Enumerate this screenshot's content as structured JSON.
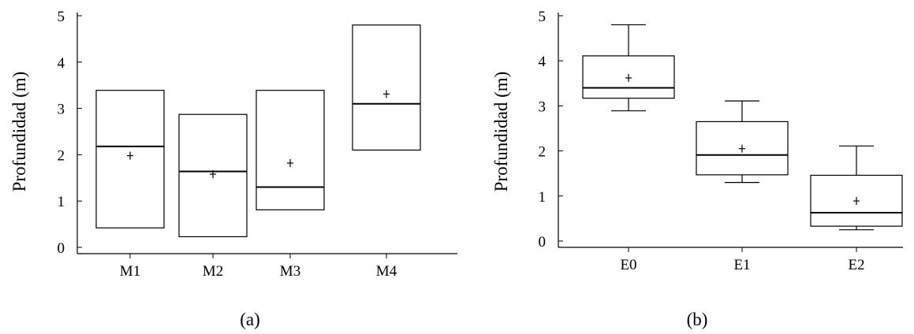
{
  "figure": {
    "panels": [
      {
        "caption": "(a)"
      },
      {
        "caption": "(b)"
      }
    ]
  },
  "chart_data": [
    {
      "type": "box",
      "panel": "(a)",
      "ylabel": "Profundidad (m)",
      "ylim": [
        0,
        5
      ],
      "yticks": [
        0,
        1,
        2,
        3,
        4,
        5
      ],
      "categories": [
        "M1",
        "M2",
        "M3",
        "M4"
      ],
      "boxes": [
        {
          "label": "M1",
          "min": 0.42,
          "q1": 0.42,
          "median": 2.18,
          "q3": 3.39,
          "max": 3.39,
          "mean": 1.98
        },
        {
          "label": "M2",
          "min": 0.23,
          "q1": 0.23,
          "median": 1.64,
          "q3": 2.87,
          "max": 2.87,
          "mean": 1.58
        },
        {
          "label": "M3",
          "min": 0.81,
          "q1": 0.81,
          "median": 1.3,
          "q3": 3.39,
          "max": 3.39,
          "mean": 1.82
        },
        {
          "label": "M4",
          "min": 2.1,
          "q1": 2.1,
          "median": 3.1,
          "q3": 4.8,
          "max": 4.8,
          "mean": 3.31
        }
      ]
    },
    {
      "type": "box",
      "panel": "(b)",
      "ylabel": "Profundidad (m)",
      "ylim": [
        0,
        5
      ],
      "yticks": [
        0,
        1,
        2,
        3,
        4,
        5
      ],
      "categories": [
        "E0",
        "E1",
        "E2"
      ],
      "boxes": [
        {
          "label": "E0",
          "min": 2.89,
          "q1": 3.17,
          "median": 3.4,
          "q3": 4.11,
          "max": 4.8,
          "mean": 3.62
        },
        {
          "label": "E1",
          "min": 1.3,
          "q1": 1.47,
          "median": 1.91,
          "q3": 2.65,
          "max": 3.11,
          "mean": 2.05
        },
        {
          "label": "E2",
          "min": 0.25,
          "q1": 0.33,
          "median": 0.63,
          "q3": 1.46,
          "max": 2.11,
          "mean": 0.89
        }
      ]
    }
  ]
}
